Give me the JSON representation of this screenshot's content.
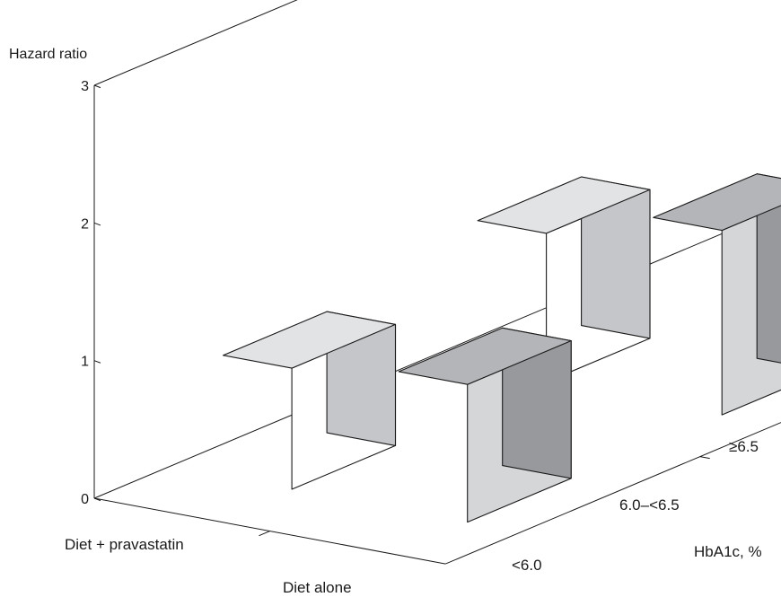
{
  "chart_data": {
    "type": "bar",
    "subtype": "3d-bar",
    "title": "",
    "ylabel": "Hazard ratio",
    "xlabel": "HbA1c, %",
    "ylim": [
      0,
      3
    ],
    "y_ticks": [
      "0",
      "1",
      "2",
      "3"
    ],
    "categories": [
      "<6.0",
      "6.0–<6.5",
      "≥6.5"
    ],
    "series": [
      {
        "name": "Diet + pravastatin",
        "values": [
          0.88,
          1.08,
          2.08
        ],
        "annotations": [
          "",
          "",
          "*"
        ],
        "colors": {
          "front": "#ffffff",
          "side": "#c4c6c9",
          "top": "#e2e3e5"
        }
      },
      {
        "name": "Diet alone",
        "values": [
          1.0,
          1.34,
          2.2
        ],
        "annotations": [
          "",
          "",
          "* *"
        ],
        "colors": {
          "front": "#d5d6d8",
          "side": "#97999c",
          "top": "#b3b5b8"
        }
      }
    ]
  }
}
